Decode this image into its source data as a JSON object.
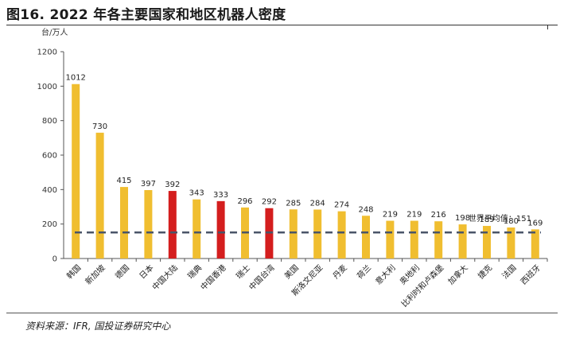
{
  "figure": {
    "title": "图16. 2022 年各主要国家和地区机器人密度",
    "source": "资料来源：IFR, 国投证券研究中心"
  },
  "colors": {
    "bar_default": "#f0be30",
    "bar_highlight": "#d41e1e",
    "avg_line": "#4a5568",
    "axis": "#555555"
  },
  "chart_data": {
    "type": "bar",
    "ylabel": "台/万人",
    "ylim": [
      0,
      1200
    ],
    "yticks": [
      0,
      200,
      400,
      600,
      800,
      1000,
      1200
    ],
    "categories": [
      "韩国",
      "新加坡",
      "德国",
      "日本",
      "中国大陆",
      "瑞典",
      "中国香港",
      "瑞士",
      "中国台湾",
      "美国",
      "斯洛文尼亚",
      "丹麦",
      "荷兰",
      "意大利",
      "奥地利",
      "比利时和卢森堡",
      "加拿大",
      "捷克",
      "法国",
      "西班牙"
    ],
    "values": [
      1012,
      730,
      415,
      397,
      392,
      343,
      333,
      296,
      292,
      285,
      284,
      274,
      248,
      219,
      219,
      216,
      198,
      189,
      180,
      169
    ],
    "highlight": [
      "中国大陆",
      "中国香港",
      "中国台湾"
    ],
    "reference_line": {
      "label": "世界平均值：151",
      "value": 151,
      "style": "dashed"
    },
    "grid": false,
    "legend": "none"
  }
}
